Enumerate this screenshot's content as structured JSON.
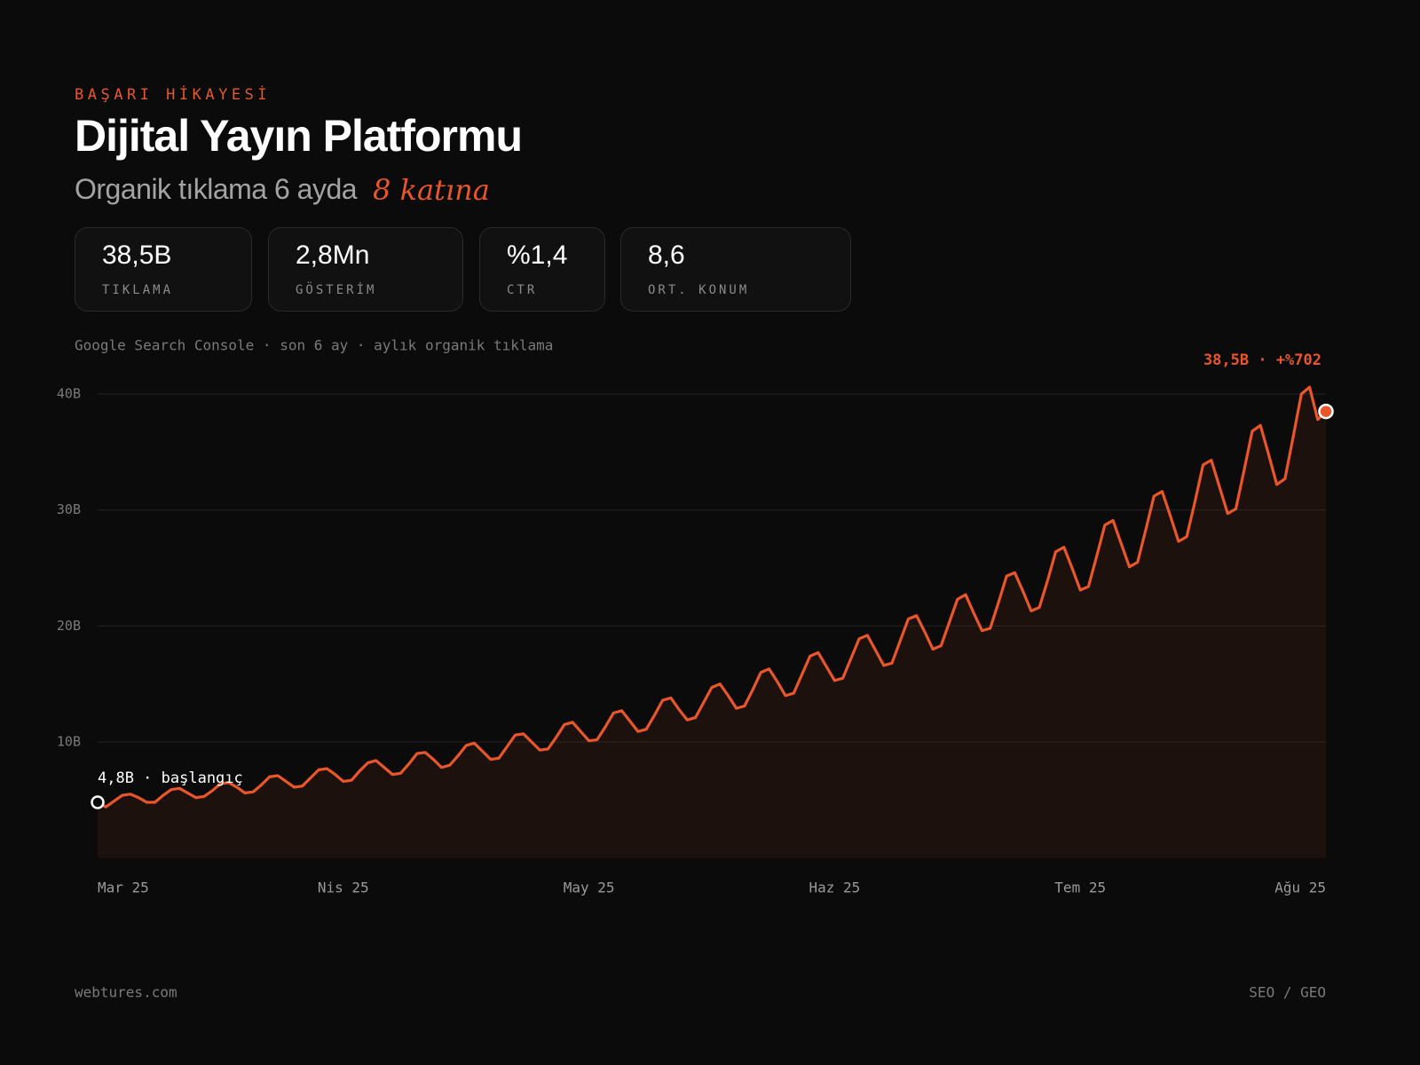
{
  "header": {
    "eyebrow": "BAŞARI HİKAYESİ",
    "title": "Dijital Yayın Platformu",
    "subtitle": "Organik tıklama 6 ayda",
    "subtitle_highlight": "8 katına"
  },
  "kpis": [
    {
      "value": "38,5B",
      "label": "TIKLAMA"
    },
    {
      "value": "2,8Mn",
      "label": "GÖSTERİM"
    },
    {
      "value": "%1,4",
      "label": "CTR"
    },
    {
      "value": "8,6",
      "label": "ORT. KONUM"
    }
  ],
  "chart_data": {
    "type": "line",
    "note": "Google Search Console · son 6 ay · aylık organik tıklama",
    "xlim": [
      0,
      150
    ],
    "xticks": [
      {
        "value": 0,
        "label": "Mar 25"
      },
      {
        "value": 30,
        "label": "Nis 25"
      },
      {
        "value": 60,
        "label": "May 25"
      },
      {
        "value": 90,
        "label": "Haz 25"
      },
      {
        "value": 120,
        "label": "Tem 25"
      },
      {
        "value": 150,
        "label": "Ağu 25"
      }
    ],
    "ylim": [
      0,
      40
    ],
    "yticks": [
      {
        "value": 10,
        "label": "10B"
      },
      {
        "value": 20,
        "label": "20B"
      },
      {
        "value": 30,
        "label": "30B"
      },
      {
        "value": 40,
        "label": "40B"
      }
    ],
    "grid": true,
    "start_label": "4,8B · başlangıç",
    "end_label": "38,5B · +%702",
    "x": [
      0,
      1,
      2,
      3,
      4,
      5,
      6,
      7,
      8,
      9,
      10,
      11,
      12,
      13,
      14,
      15,
      16,
      17,
      18,
      19,
      20,
      21,
      22,
      23,
      24,
      25,
      26,
      27,
      28,
      29,
      30,
      31,
      32,
      33,
      34,
      35,
      36,
      37,
      38,
      39,
      40,
      41,
      42,
      43,
      44,
      45,
      46,
      47,
      48,
      49,
      50,
      51,
      52,
      53,
      54,
      55,
      56,
      57,
      58,
      59,
      60,
      61,
      62,
      63,
      64,
      65,
      66,
      67,
      68,
      69,
      70,
      71,
      72,
      73,
      74,
      75,
      76,
      77,
      78,
      79,
      80,
      81,
      82,
      83,
      84,
      85,
      86,
      87,
      88,
      89,
      90,
      91,
      92,
      93,
      94,
      95,
      96,
      97,
      98,
      99,
      100,
      101,
      102,
      103,
      104,
      105,
      106,
      107,
      108,
      109,
      110,
      111,
      112,
      113,
      114,
      115,
      116,
      117,
      118,
      119,
      120,
      121,
      122,
      123,
      124,
      125,
      126,
      127,
      128,
      129,
      130,
      131,
      132,
      133,
      134,
      135,
      136,
      137,
      138,
      139,
      140,
      141,
      142,
      143,
      144,
      145,
      146,
      147,
      148,
      149,
      150
    ],
    "series": [
      {
        "color": "#e8562a",
        "values": [
          4.8,
          4.4,
          4.9,
          5.4,
          5.5,
          5.2,
          4.8,
          4.8,
          5.4,
          5.9,
          6.0,
          5.6,
          5.2,
          5.3,
          5.8,
          6.4,
          6.5,
          6.1,
          5.6,
          5.7,
          6.3,
          7.0,
          7.1,
          6.6,
          6.1,
          6.2,
          6.9,
          7.6,
          7.7,
          7.2,
          6.6,
          6.7,
          7.5,
          8.2,
          8.4,
          7.8,
          7.2,
          7.3,
          8.1,
          9.0,
          9.1,
          8.5,
          7.8,
          8.0,
          8.8,
          9.7,
          9.9,
          9.2,
          8.5,
          8.6,
          9.6,
          10.6,
          10.7,
          10.0,
          9.3,
          9.4,
          10.4,
          11.5,
          11.7,
          10.9,
          10.1,
          10.2,
          11.3,
          12.5,
          12.7,
          11.8,
          10.9,
          11.1,
          12.3,
          13.6,
          13.8,
          12.8,
          11.9,
          12.1,
          13.4,
          14.7,
          15.0,
          14.0,
          12.9,
          13.1,
          14.5,
          16.0,
          16.3,
          15.2,
          14.0,
          14.2,
          15.8,
          17.4,
          17.7,
          16.5,
          15.3,
          15.5,
          17.2,
          18.9,
          19.2,
          17.9,
          16.6,
          16.8,
          18.7,
          20.6,
          20.9,
          19.5,
          18.0,
          18.3,
          20.3,
          22.3,
          22.7,
          21.1,
          19.6,
          19.8,
          22.0,
          24.3,
          24.6,
          23.0,
          21.3,
          21.6,
          23.9,
          26.4,
          26.8,
          25.0,
          23.1,
          23.4,
          26.0,
          28.7,
          29.1,
          27.1,
          25.1,
          25.5,
          28.3,
          31.2,
          31.6,
          29.5,
          27.3,
          27.7,
          30.7,
          33.9,
          34.3,
          32.0,
          29.7,
          30.1,
          33.4,
          36.8,
          37.3,
          34.8,
          32.2,
          32.7,
          36.3,
          40.0,
          40.6,
          37.8,
          38.5
        ]
      }
    ]
  },
  "footer": {
    "left": "webtures.com",
    "right": "SEO / GEO"
  }
}
